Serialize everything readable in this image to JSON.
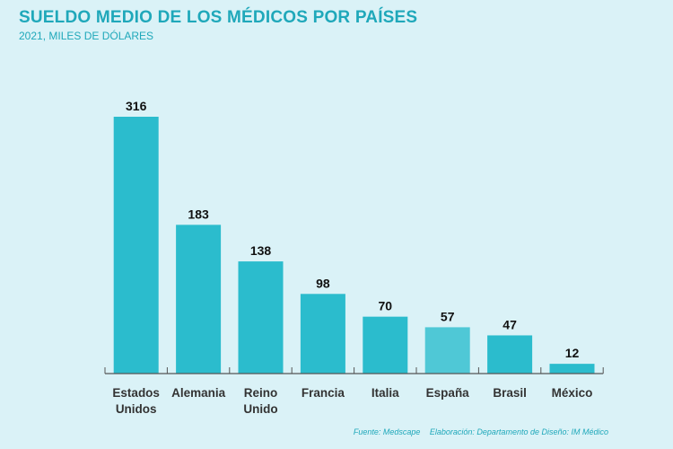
{
  "chart_data": {
    "type": "bar",
    "title": "SUELDO MEDIO DE LOS MÉDICOS POR PAÍSES",
    "subtitle": "2021, MILES DE DÓLARES",
    "categories": [
      [
        "Estados",
        "Unidos"
      ],
      [
        "Alemania"
      ],
      [
        "Reino",
        "Unido"
      ],
      [
        "Francia"
      ],
      [
        "Italia"
      ],
      [
        "España"
      ],
      [
        "Brasil"
      ],
      [
        "México"
      ]
    ],
    "values": [
      316,
      183,
      138,
      98,
      70,
      57,
      47,
      12
    ],
    "highlight_index": 5,
    "xlabel": "",
    "ylabel": "",
    "ylim": [
      0,
      330
    ],
    "grid": false,
    "colors": {
      "bar": "#2bbccd",
      "highlight": "#4fc8d6",
      "axis": "#555555",
      "label": "#333333"
    }
  },
  "footer": {
    "source": "Fuente: Medscape",
    "credit": "Elaboración: Departamento de Diseño: IM Médico"
  }
}
